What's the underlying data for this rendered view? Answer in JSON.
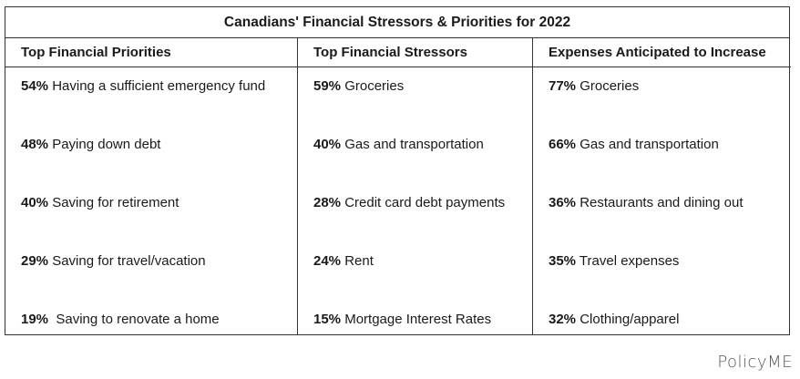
{
  "title": "Canadians' Financial Stressors & Priorities for 2022",
  "columns": [
    {
      "header": "Top Financial Priorities",
      "items": [
        {
          "pct": "54%",
          "text": " Having a sufficient emergency fund"
        },
        {
          "pct": "48%",
          "text": " Paying down debt"
        },
        {
          "pct": "40%",
          "text": " Saving for retirement"
        },
        {
          "pct": "29%",
          "text": " Saving for travel/vacation"
        },
        {
          "pct": "19%",
          "text": "  Saving to renovate a home"
        }
      ]
    },
    {
      "header": "Top Financial Stressors",
      "items": [
        {
          "pct": "59%",
          "text": " Groceries"
        },
        {
          "pct": "40%",
          "text": " Gas and transportation"
        },
        {
          "pct": "28%",
          "text": " Credit card debt payments"
        },
        {
          "pct": "24%",
          "text": " Rent"
        },
        {
          "pct": "15%",
          "text": " Mortgage Interest Rates"
        }
      ]
    },
    {
      "header": "Expenses Anticipated to Increase",
      "items": [
        {
          "pct": "77%",
          "text": " Groceries"
        },
        {
          "pct": "66%",
          "text": " Gas and transportation"
        },
        {
          "pct": "36%",
          "text": " Restaurants and dining out"
        },
        {
          "pct": "35%",
          "text": " Travel expenses"
        },
        {
          "pct": "32%",
          "text": " Clothing/apparel"
        }
      ]
    }
  ],
  "logo": "PolicyME"
}
